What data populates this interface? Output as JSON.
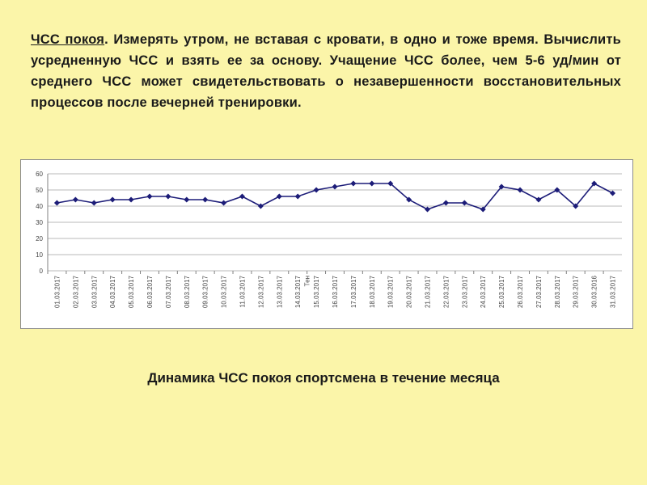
{
  "intro": {
    "lead": "ЧСС покоя",
    "text": ". Измерять утром, не вставая с кровати, в одно и тоже время. Вычислить усредненную ЧСС и взять ее за основу. Учащение ЧСС более, чем 5-6 уд/мин  от среднего ЧСС может свидетельствовать о незавершенности восстановительных процессов после вечерней тренировки."
  },
  "chart_data": {
    "type": "line",
    "title": "Динамика ЧСС покоя спортсмена в течение месяца",
    "categories": [
      "01.03.2017",
      "02.03.2017",
      "03.03.2017",
      "04.03.2017",
      "05.03.2017",
      "06.03.2017",
      "07.03.2017",
      "08.03.2017",
      "09.03.2017",
      "10.03.2017",
      "11.03.2017",
      "12.03.2017",
      "13.03.2017",
      "14.03.2017",
      "15.03.2017",
      "16.03.2017",
      "17.03.2017",
      "18.03.2017",
      "19.03.2017",
      "20.03.2017",
      "21.03.2017",
      "22.03.2017",
      "23.03.2017",
      "24.03.2017",
      "25.03.2017",
      "26.03.2017",
      "27.03.2017",
      "28.03.2017",
      "29.03.2017",
      "30.03.2016",
      "31.03.2017"
    ],
    "series": [
      {
        "color": "#1c1c78",
        "values": [
          42,
          44,
          42,
          44,
          44,
          46,
          46,
          44,
          44,
          42,
          46,
          40,
          46,
          46,
          50,
          52,
          54,
          54,
          54,
          44,
          38,
          42,
          42,
          38,
          52,
          50,
          44,
          50,
          40,
          54,
          48
        ]
      }
    ],
    "annotations": [
      "Тен"
    ],
    "ylim": [
      0,
      60
    ],
    "yticks": [
      0,
      10,
      20,
      30,
      40,
      50,
      60
    ],
    "grid": true
  }
}
